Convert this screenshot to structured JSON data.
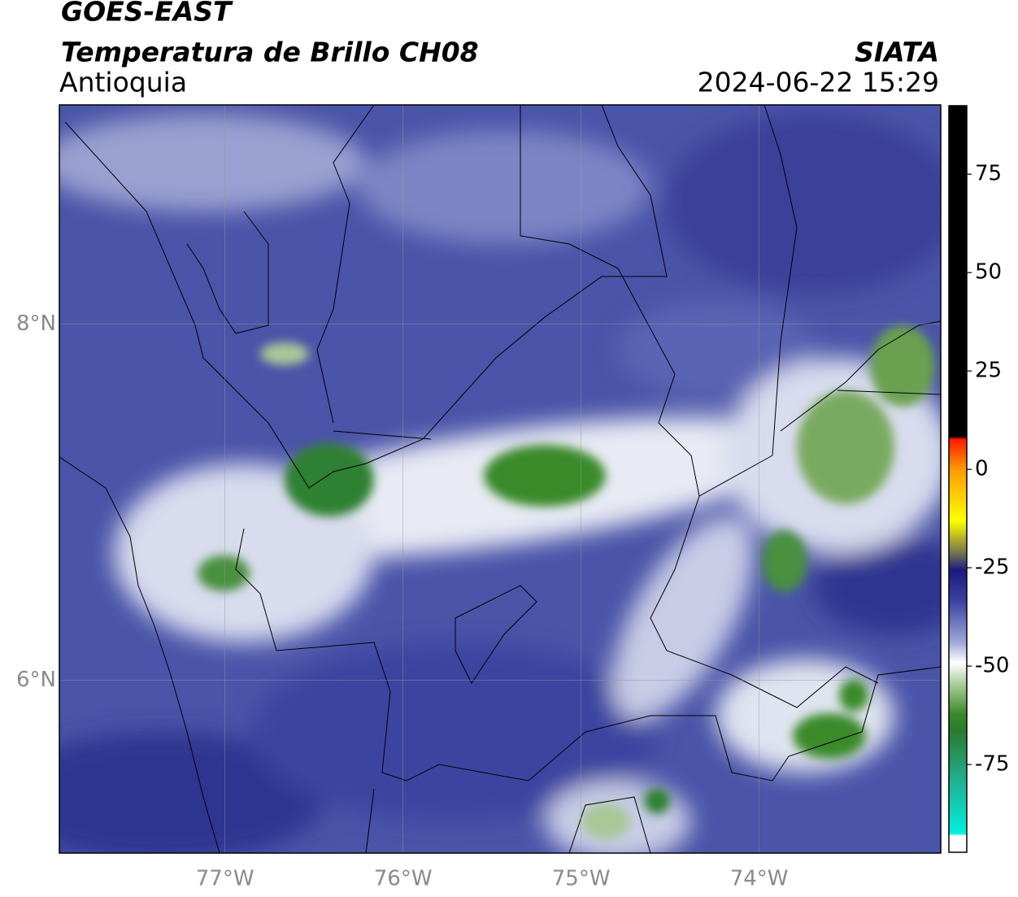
{
  "header": {
    "title": "GOES-EAST",
    "subtitle": "Temperatura de Brillo CH08",
    "region": "Antioquia",
    "source": "SIATA",
    "timestamp": "2024-06-22 15:29"
  },
  "map": {
    "xlim": [
      -77.93,
      -72.98
    ],
    "ylim": [
      5.03,
      9.23
    ],
    "xticks": [
      {
        "value": -77,
        "label": "77°W"
      },
      {
        "value": -76,
        "label": "76°W"
      },
      {
        "value": -75,
        "label": "75°W"
      },
      {
        "value": -74,
        "label": "74°W"
      }
    ],
    "yticks": [
      {
        "value": 6,
        "label": "6°N"
      },
      {
        "value": 8,
        "label": "8°N"
      }
    ],
    "grid": true
  },
  "colorbar": {
    "lim": [
      -97.3,
      92.4
    ],
    "ticks": [
      -75,
      -50,
      -25,
      0,
      25,
      50,
      75
    ]
  }
}
